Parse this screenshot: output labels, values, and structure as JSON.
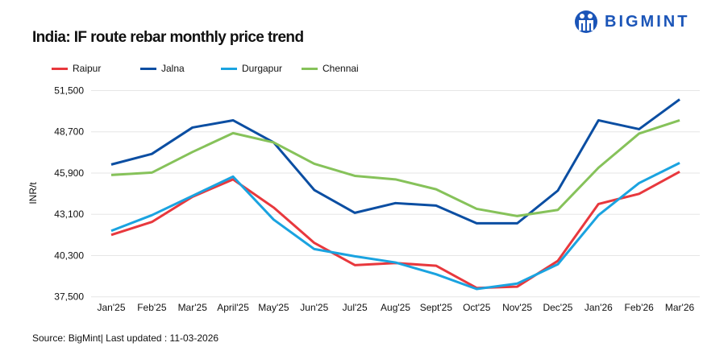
{
  "brand": {
    "name": "BIGMINT",
    "color": "#1b55b8"
  },
  "chart_data": {
    "type": "line",
    "title": "India: IF route rebar monthly price trend",
    "ylabel": "INR/t",
    "xlabel": "",
    "ylim": [
      37500,
      51500
    ],
    "yticks": [
      "37,500",
      "40,300",
      "43,100",
      "45,900",
      "48,700",
      "51,500"
    ],
    "ytick_values": [
      37500,
      40300,
      43100,
      45900,
      48700,
      51500
    ],
    "grid": true,
    "legend": "top-left",
    "categories": [
      "Jan'25",
      "Feb'25",
      "Mar'25",
      "April'25",
      "May'25",
      "Jun'25",
      "Jul'25",
      "Aug'25",
      "Sept'25",
      "Oct'25",
      "Nov'25",
      "Dec'25",
      "Jan'26",
      "Feb'26",
      "Mar'26"
    ],
    "series": [
      {
        "name": "Raipur",
        "color": "#e8383d",
        "values": [
          41700,
          42580,
          44290,
          45470,
          43560,
          41160,
          39650,
          39790,
          39610,
          38100,
          38190,
          39940,
          43800,
          44490,
          45990
        ]
      },
      {
        "name": "Jalna",
        "color": "#0b4ea2",
        "values": [
          46480,
          47200,
          48990,
          49480,
          47980,
          44750,
          43200,
          43860,
          43690,
          42490,
          42490,
          44710,
          49480,
          48880,
          50900
        ]
      },
      {
        "name": "Durgapur",
        "color": "#1aa3e0",
        "values": [
          41980,
          43040,
          44350,
          45660,
          42740,
          40740,
          40250,
          39830,
          39030,
          38030,
          38400,
          39710,
          43040,
          45220,
          46590
        ]
      },
      {
        "name": "Chennai",
        "color": "#86c25a",
        "values": [
          45770,
          45930,
          47330,
          48610,
          47980,
          46530,
          45710,
          45470,
          44800,
          43470,
          42980,
          43400,
          46260,
          48580,
          49480
        ]
      }
    ]
  },
  "source": "Source: BigMint| Last updated : 11-03-2026"
}
